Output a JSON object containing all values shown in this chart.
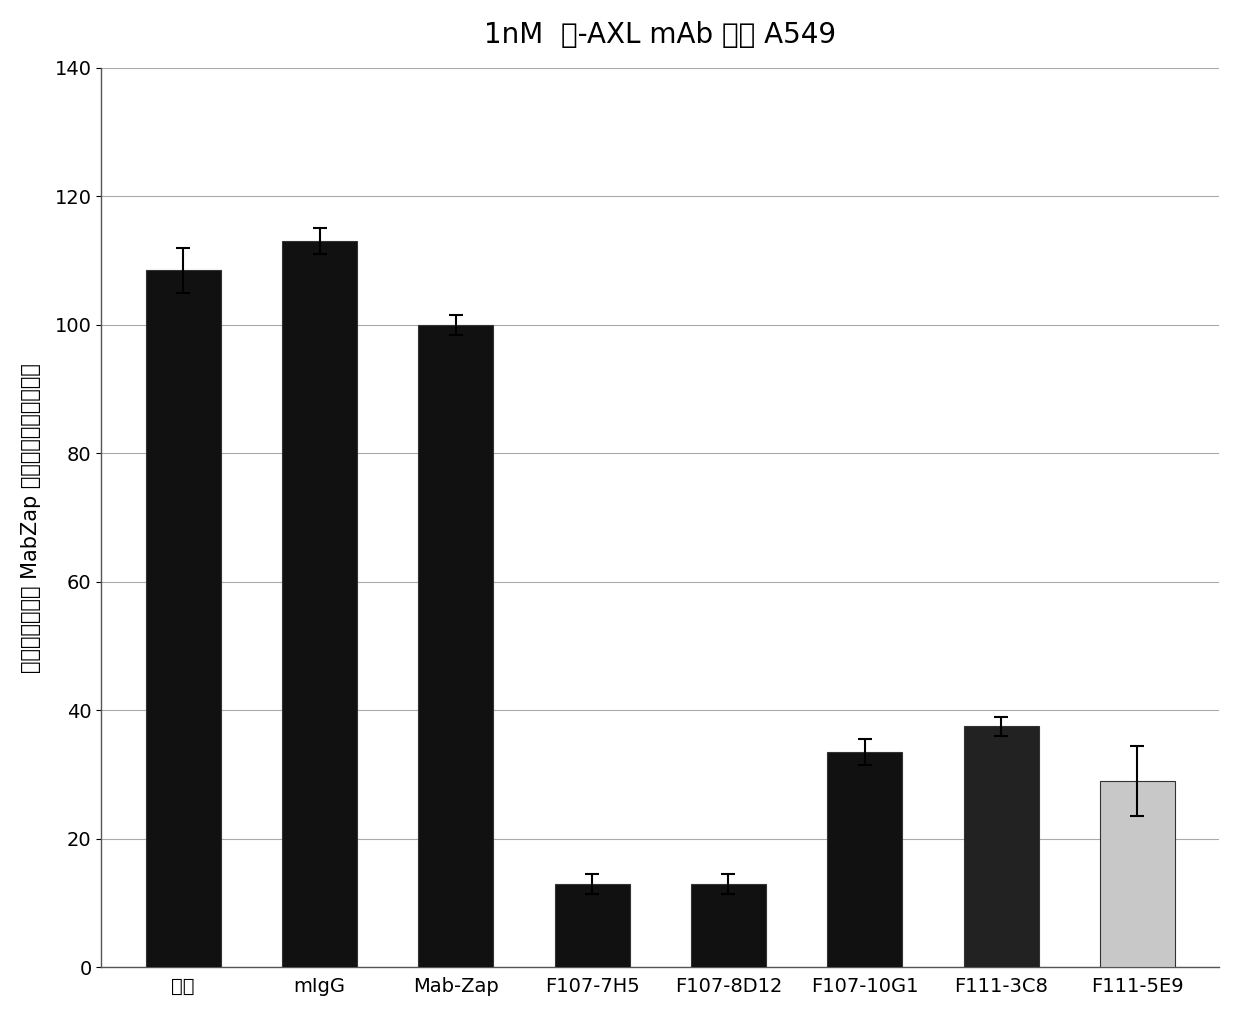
{
  "title": "1nM  抗-AXL mAb 用于 A549",
  "ylabel_chars": [
    "相",
    "对",
    "于",
    "单",
    "独",
    "二",
    "级",
    " ",
    "M",
    "a",
    "b",
    "Z",
    "a",
    "p",
    "抗",
    "体",
    "的",
    "细",
    "胞",
    "存",
    "活",
    "百",
    "分",
    "数"
  ],
  "ylabel": "相对于单独二级 MabZap 抗体的细胞存活百分数",
  "categories": [
    "模拟",
    "mIgG",
    "Mab-Zap",
    "F107-7H5",
    "F107-8D12",
    "F107-10G1",
    "F111-3C8",
    "F111-5E9"
  ],
  "values": [
    108.5,
    113.0,
    100.0,
    13.0,
    13.0,
    33.5,
    37.5,
    29.0
  ],
  "errors": [
    3.5,
    2.0,
    1.5,
    1.5,
    1.5,
    2.0,
    1.5,
    5.5
  ],
  "bar_colors": [
    "#111111",
    "#111111",
    "#111111",
    "#111111",
    "#111111",
    "#111111",
    "#222222",
    "#c8c8c8"
  ],
  "bar_hatches": [
    null,
    null,
    null,
    null,
    null,
    null,
    null,
    null
  ],
  "ylim": [
    0,
    140
  ],
  "yticks": [
    0,
    20,
    40,
    60,
    80,
    100,
    120,
    140
  ],
  "background_color": "#ffffff",
  "title_fontsize": 20,
  "ylabel_fontsize": 15,
  "tick_fontsize": 14,
  "bar_width": 0.55,
  "grid_color": "#aaaaaa",
  "spine_color": "#555555"
}
